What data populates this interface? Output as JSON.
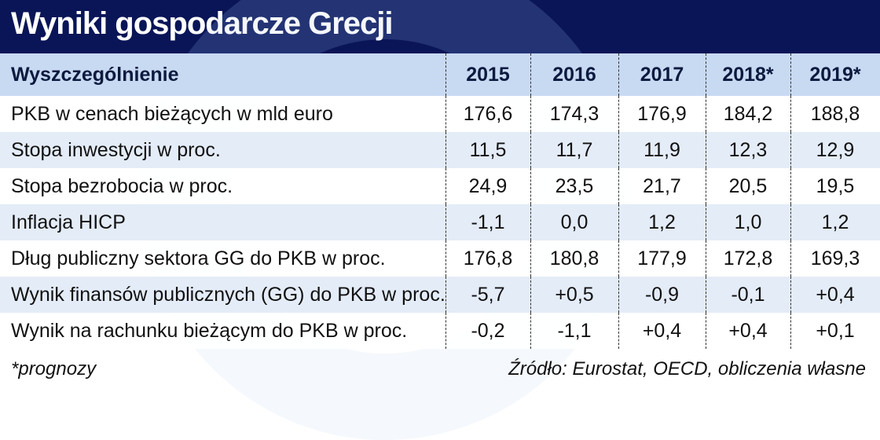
{
  "chart_data": {
    "type": "table",
    "title": "Wyniki gospodarcze Grecji",
    "columns": [
      "Wyszczególnienie",
      "2015",
      "2016",
      "2017",
      "2018*",
      "2019*"
    ],
    "rows": [
      {
        "label": "PKB w cenach bieżących w mld euro",
        "values": [
          "176,6",
          "174,3",
          "176,9",
          "184,2",
          "188,8"
        ]
      },
      {
        "label": "Stopa inwestycji w proc.",
        "values": [
          "11,5",
          "11,7",
          "11,9",
          "12,3",
          "12,9"
        ]
      },
      {
        "label": "Stopa bezrobocia w proc.",
        "values": [
          "24,9",
          "23,5",
          "21,7",
          "20,5",
          "19,5"
        ]
      },
      {
        "label": "Inflacja HICP",
        "values": [
          "-1,1",
          "0,0",
          "1,2",
          "1,0",
          "1,2"
        ]
      },
      {
        "label": "Dług publiczny sektora GG do PKB w proc.",
        "values": [
          "176,8",
          "180,8",
          "177,9",
          "172,8",
          "169,3"
        ]
      },
      {
        "label": "Wynik finansów publicznych (GG) do PKB w proc.",
        "values": [
          "-5,7",
          "+0,5",
          "-0,9",
          "-0,1",
          "+0,4"
        ]
      },
      {
        "label": "Wynik na rachunku bieżącym do PKB w proc.",
        "values": [
          "-0,2",
          "-1,1",
          "+0,4",
          "+0,4",
          "+0,1"
        ]
      }
    ],
    "footnote": "*prognozy",
    "source": "Źródło: Eurostat, OECD, obliczenia własne"
  },
  "colors": {
    "title_bg": "#0a1557",
    "header_bg": "#c8d9f2",
    "alt_row": "#e4ecf8"
  }
}
